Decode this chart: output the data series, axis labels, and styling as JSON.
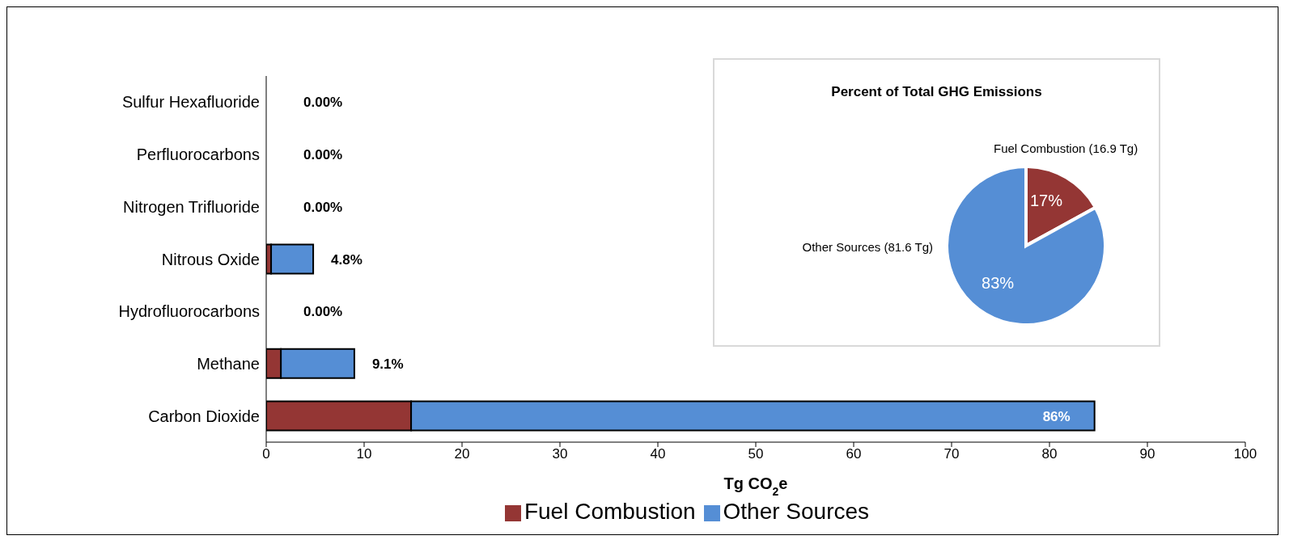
{
  "chart_data": [
    {
      "type": "bar",
      "orientation": "horizontal",
      "stacked": true,
      "xlabel": "Tg CO$_{2}$e",
      "categories": [
        "Sulfur Hexafluoride",
        "Perfluorocarbons",
        "Nitrogen Trifluoride",
        "Nitrous Oxide",
        "Hydrofluorocarbons",
        "Methane",
        "Carbon Dioxide"
      ],
      "series": [
        {
          "name": "Fuel Combustion",
          "color": "#943634",
          "values": [
            0,
            0,
            0,
            0.5,
            0,
            1.5,
            14.8
          ]
        },
        {
          "name": "Other Sources",
          "color": "#558ed5",
          "values": [
            0,
            0,
            0,
            4.3,
            0,
            7.5,
            69.8
          ]
        }
      ],
      "annotations": [
        {
          "text": "0.00%",
          "x": 0,
          "y": "Sulfur Hexafluoride"
        },
        {
          "text": "0.00%",
          "x": 0,
          "y": "Perfluorocarbons"
        },
        {
          "text": "0.00%",
          "x": 0,
          "y": "Nitrogen Trifluoride"
        },
        {
          "text": "4.8%",
          "x": 4.8,
          "y": "Nitrous Oxide"
        },
        {
          "text": "0.00%",
          "x": 0,
          "y": "Hydrofluorocarbons"
        },
        {
          "text": "9.1%",
          "x": 9,
          "y": "Methane"
        },
        {
          "text": "86%",
          "x": 84.6,
          "y": "Carbon Dioxide"
        }
      ],
      "xlim": [
        0,
        100
      ],
      "xticks": [
        0,
        10,
        20,
        30,
        40,
        50,
        60,
        70,
        80,
        90,
        100
      ],
      "grid": false,
      "legend": "bottom"
    },
    {
      "type": "pie",
      "title": "Percent of Total GHG Emissions",
      "categories": [
        "Fuel Combustion (16.9 Tg)",
        "Other Sources  (81.6 Tg)"
      ],
      "values": [
        17,
        83
      ],
      "colors": [
        "#943634",
        "#558ed5"
      ],
      "value_labels": [
        "17%",
        "83%"
      ]
    }
  ]
}
